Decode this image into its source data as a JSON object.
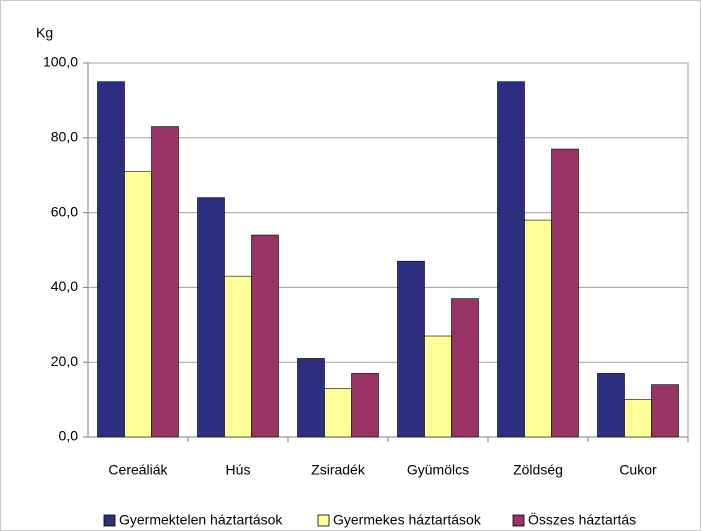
{
  "chart_data": {
    "type": "bar",
    "y_label": "Kg",
    "categories": [
      "Cereáliák",
      "Hús",
      "Zsiradék",
      "Gyümölcs",
      "Zöldség",
      "Cukor"
    ],
    "series": [
      {
        "name": "Gyermektelen háztartások",
        "color": "#2e2e80",
        "values": [
          95,
          64,
          21,
          47,
          95,
          17
        ]
      },
      {
        "name": "Gyermekes háztartások",
        "color": "#ffff99",
        "values": [
          71,
          43,
          13,
          27,
          58,
          10
        ]
      },
      {
        "name": "Összes háztartás",
        "color": "#993366",
        "values": [
          83,
          54,
          17,
          37,
          77,
          14
        ]
      }
    ],
    "ylim": [
      0,
      100
    ],
    "yticks": [
      {
        "value": 0,
        "label": "0,0"
      },
      {
        "value": 20,
        "label": "20,0"
      },
      {
        "value": 40,
        "label": "40,0"
      },
      {
        "value": 60,
        "label": "60,0"
      },
      {
        "value": 80,
        "label": "80,0"
      },
      {
        "value": 100,
        "label": "100,0"
      }
    ],
    "grid": true,
    "legend": "bottom"
  }
}
